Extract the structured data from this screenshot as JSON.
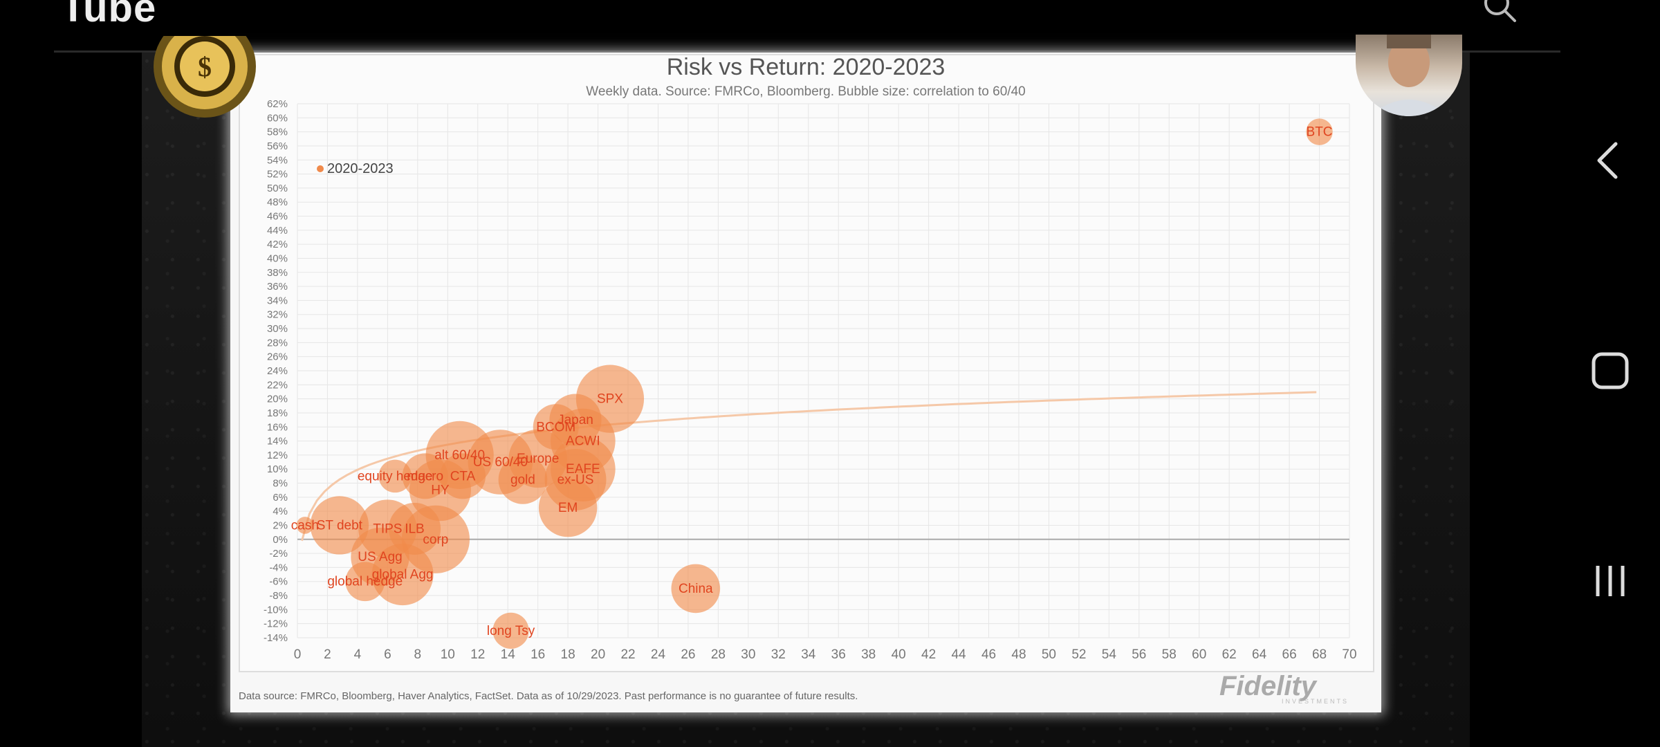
{
  "app": {
    "brand": "Tube"
  },
  "slide": {
    "title": "Risk vs Return: 2020-2023",
    "subtitle": "Weekly data.  Source: FMRCo, Bloomberg.  Bubble size: correlation to 60/40",
    "footnote": "Data source: FMRCo, Bloomberg, Haver Analytics, FactSet. Data as of 10/29/2023. Past performance is no guarantee of future results.",
    "logo": "Fidelity",
    "logo_sub": "INVESTMENTS"
  },
  "chart_data": {
    "type": "scatter",
    "title": "Risk vs Return: 2020-2023",
    "legend": {
      "label": "2020-2023",
      "placement": "top-left"
    },
    "xlim": [
      0,
      70
    ],
    "ylim": [
      -14,
      62
    ],
    "x_ticks": [
      "0",
      "2",
      "4",
      "6",
      "8",
      "10",
      "12",
      "14",
      "16",
      "18",
      "20",
      "22",
      "24",
      "26",
      "28",
      "30",
      "32",
      "34",
      "36",
      "38",
      "40",
      "42",
      "44",
      "46",
      "48",
      "50",
      "52",
      "54",
      "56",
      "58",
      "60",
      "62",
      "64",
      "66",
      "68",
      "70"
    ],
    "y_ticks": [
      "62%",
      "60%",
      "58%",
      "56%",
      "54%",
      "52%",
      "50%",
      "48%",
      "46%",
      "44%",
      "42%",
      "40%",
      "38%",
      "36%",
      "34%",
      "32%",
      "30%",
      "28%",
      "26%",
      "24%",
      "22%",
      "20%",
      "18%",
      "16%",
      "14%",
      "12%",
      "10%",
      "8%",
      "6%",
      "4%",
      "2%",
      "0%",
      "-2%",
      "-4%",
      "-6%",
      "-8%",
      "-10%",
      "-12%",
      "-14%"
    ],
    "grid": true,
    "series": [
      {
        "name": "2020-2023",
        "points": [
          {
            "label": "BTC",
            "x": 68,
            "y": 58,
            "size": 0.2
          },
          {
            "label": "SPX",
            "x": 20.8,
            "y": 20,
            "size": 0.85
          },
          {
            "label": "Japan",
            "x": 18.5,
            "y": 17,
            "size": 0.6
          },
          {
            "label": "BCOM",
            "x": 17.2,
            "y": 16,
            "size": 0.5
          },
          {
            "label": "ACWI",
            "x": 19,
            "y": 14,
            "size": 0.8
          },
          {
            "label": "Europe",
            "x": 16,
            "y": 11.5,
            "size": 0.7
          },
          {
            "label": "EAFE",
            "x": 19,
            "y": 10,
            "size": 0.8
          },
          {
            "label": "ex-US",
            "x": 18.5,
            "y": 8.5,
            "size": 0.75
          },
          {
            "label": "EM",
            "x": 18,
            "y": 4.5,
            "size": 0.7
          },
          {
            "label": "alt 60/40",
            "x": 10.8,
            "y": 12,
            "size": 0.85
          },
          {
            "label": "US 60/40",
            "x": 13.5,
            "y": 11,
            "size": 0.8
          },
          {
            "label": "gold",
            "x": 15,
            "y": 8.5,
            "size": 0.55
          },
          {
            "label": "equity hedge",
            "x": 6.5,
            "y": 9,
            "size": 0.3
          },
          {
            "label": "macro",
            "x": 8.5,
            "y": 9,
            "size": 0.5
          },
          {
            "label": "CTA",
            "x": 11,
            "y": 9,
            "size": 0.5
          },
          {
            "label": "HY",
            "x": 9.5,
            "y": 7,
            "size": 0.75
          },
          {
            "label": "cash",
            "x": 0.5,
            "y": 2,
            "size": 0.05
          },
          {
            "label": "ST debt",
            "x": 2.8,
            "y": 2,
            "size": 0.7
          },
          {
            "label": "TIPS",
            "x": 6,
            "y": 1.5,
            "size": 0.7
          },
          {
            "label": "ILB",
            "x": 7.8,
            "y": 1.5,
            "size": 0.6
          },
          {
            "label": "corp",
            "x": 9.2,
            "y": 0,
            "size": 0.85
          },
          {
            "label": "US Agg",
            "x": 5.5,
            "y": -2.5,
            "size": 0.7
          },
          {
            "label": "global Agg",
            "x": 7,
            "y": -5,
            "size": 0.75
          },
          {
            "label": "global hedge",
            "x": 4.5,
            "y": -6,
            "size": 0.4
          },
          {
            "label": "China",
            "x": 26.5,
            "y": -7,
            "size": 0.55
          },
          {
            "label": "long Tsy",
            "x": 14.2,
            "y": -13,
            "size": 0.35
          }
        ]
      }
    ]
  },
  "colors": {
    "bubble": "#f08a4b",
    "label": "#e0441f",
    "trend": "#f5c8a8",
    "grid": "#e6e6e6"
  },
  "icons": {
    "search": "search-icon",
    "back": "back-icon",
    "home": "home-icon",
    "recents": "recents-icon"
  }
}
